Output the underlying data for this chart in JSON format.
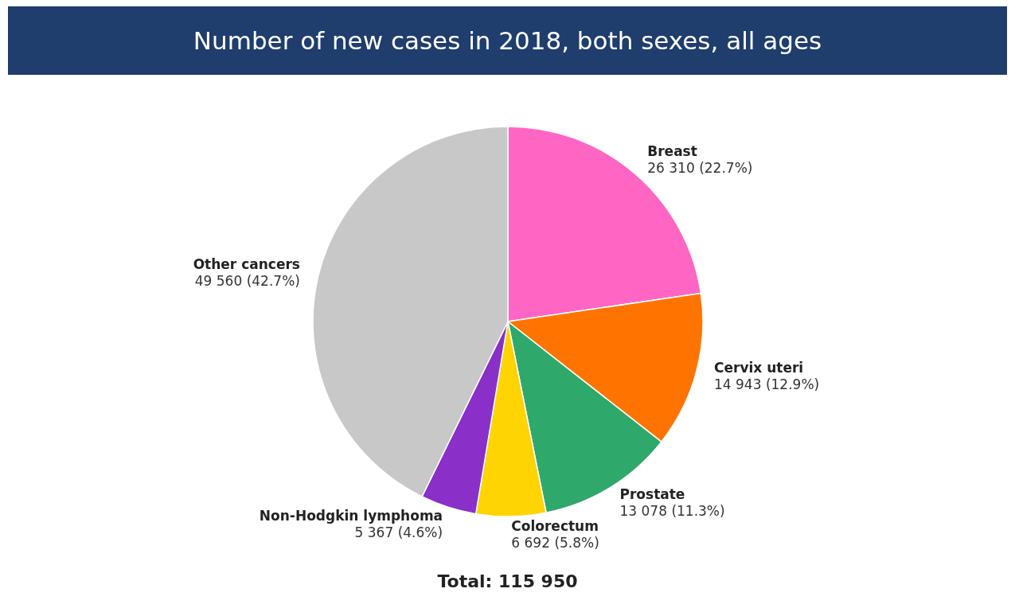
{
  "chart_data": {
    "type": "pie",
    "title": "Number of new cases in 2018, both sexes, all ages",
    "categories": [
      "Breast",
      "Cervix uteri",
      "Prostate",
      "Colorectum",
      "Non-Hodgkin lymphoma",
      "Other cancers"
    ],
    "values": [
      26310,
      14943,
      13078,
      6692,
      5367,
      49560
    ],
    "value_labels": [
      "26 310 (22.7%)",
      "14 943 (12.9%)",
      "13 078 (11.3%)",
      "6 692 (5.8%)",
      "5 367 (4.6%)",
      "49 560 (42.7%)"
    ],
    "colors": [
      "#ff66c4",
      "#ff7400",
      "#2ea86b",
      "#ffd400",
      "#8b2fc9",
      "#c8c8c8"
    ],
    "annotations": [
      "Total: 115 950"
    ],
    "legend": false
  }
}
